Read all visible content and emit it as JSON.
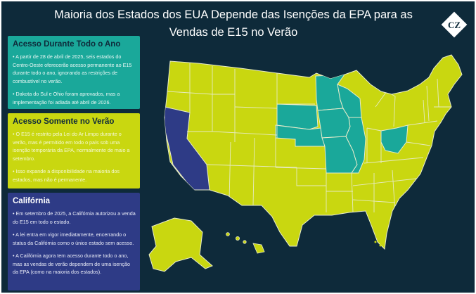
{
  "header": {
    "title_line1": "Maioria dos Estados dos EUA Depende das Isenções da EPA para as",
    "title_line2": "Vendas de E15 no Verão",
    "logo_text": "CZ"
  },
  "legend": [
    {
      "title": "Acesso Durante Todo o Ano",
      "color": "#1aa89a",
      "points": [
        "• A partir de 28 de abril de 2025, seis estados do Centro-Oeste oferecerão acesso permanente ao E15 durante todo o ano, ignorando as restrições de combustível no verão.",
        "• Dakota do Sul e Ohio foram aprovados, mas a implementação foi adiada até abril de 2026."
      ]
    },
    {
      "title": "Acesso Somente no Verão",
      "color": "#c9d710",
      "points": [
        "• O E15 é restrito pela Lei do Ar Limpo durante o verão, mas é permitido em todo o país sob uma isenção temporária da EPA, normalmente de maio a setembro.",
        "• Isso expande a disponibilidade na maioria dos estados, mas não é permanente."
      ]
    },
    {
      "title": "Califórnia",
      "color": "#2e3b86",
      "points": [
        "• Em setembro de 2025, a Califórnia autorizou a venda do E15 em todo o estado.",
        "• A lei entra em vigor imediatamente, encerrando o status da Califórnia como o único estado sem acesso.",
        "• A Califórnia agora tem acesso durante todo o ano, mas as vendas de verão dependem de uma isenção da EPA (como na maioria dos estados)."
      ]
    }
  ],
  "map": {
    "colors": {
      "year_round": "#1aa89a",
      "summer_only": "#c9d710",
      "california": "#2e3b86",
      "background": "#0e2a3a",
      "border": "#e8eccb"
    }
  }
}
